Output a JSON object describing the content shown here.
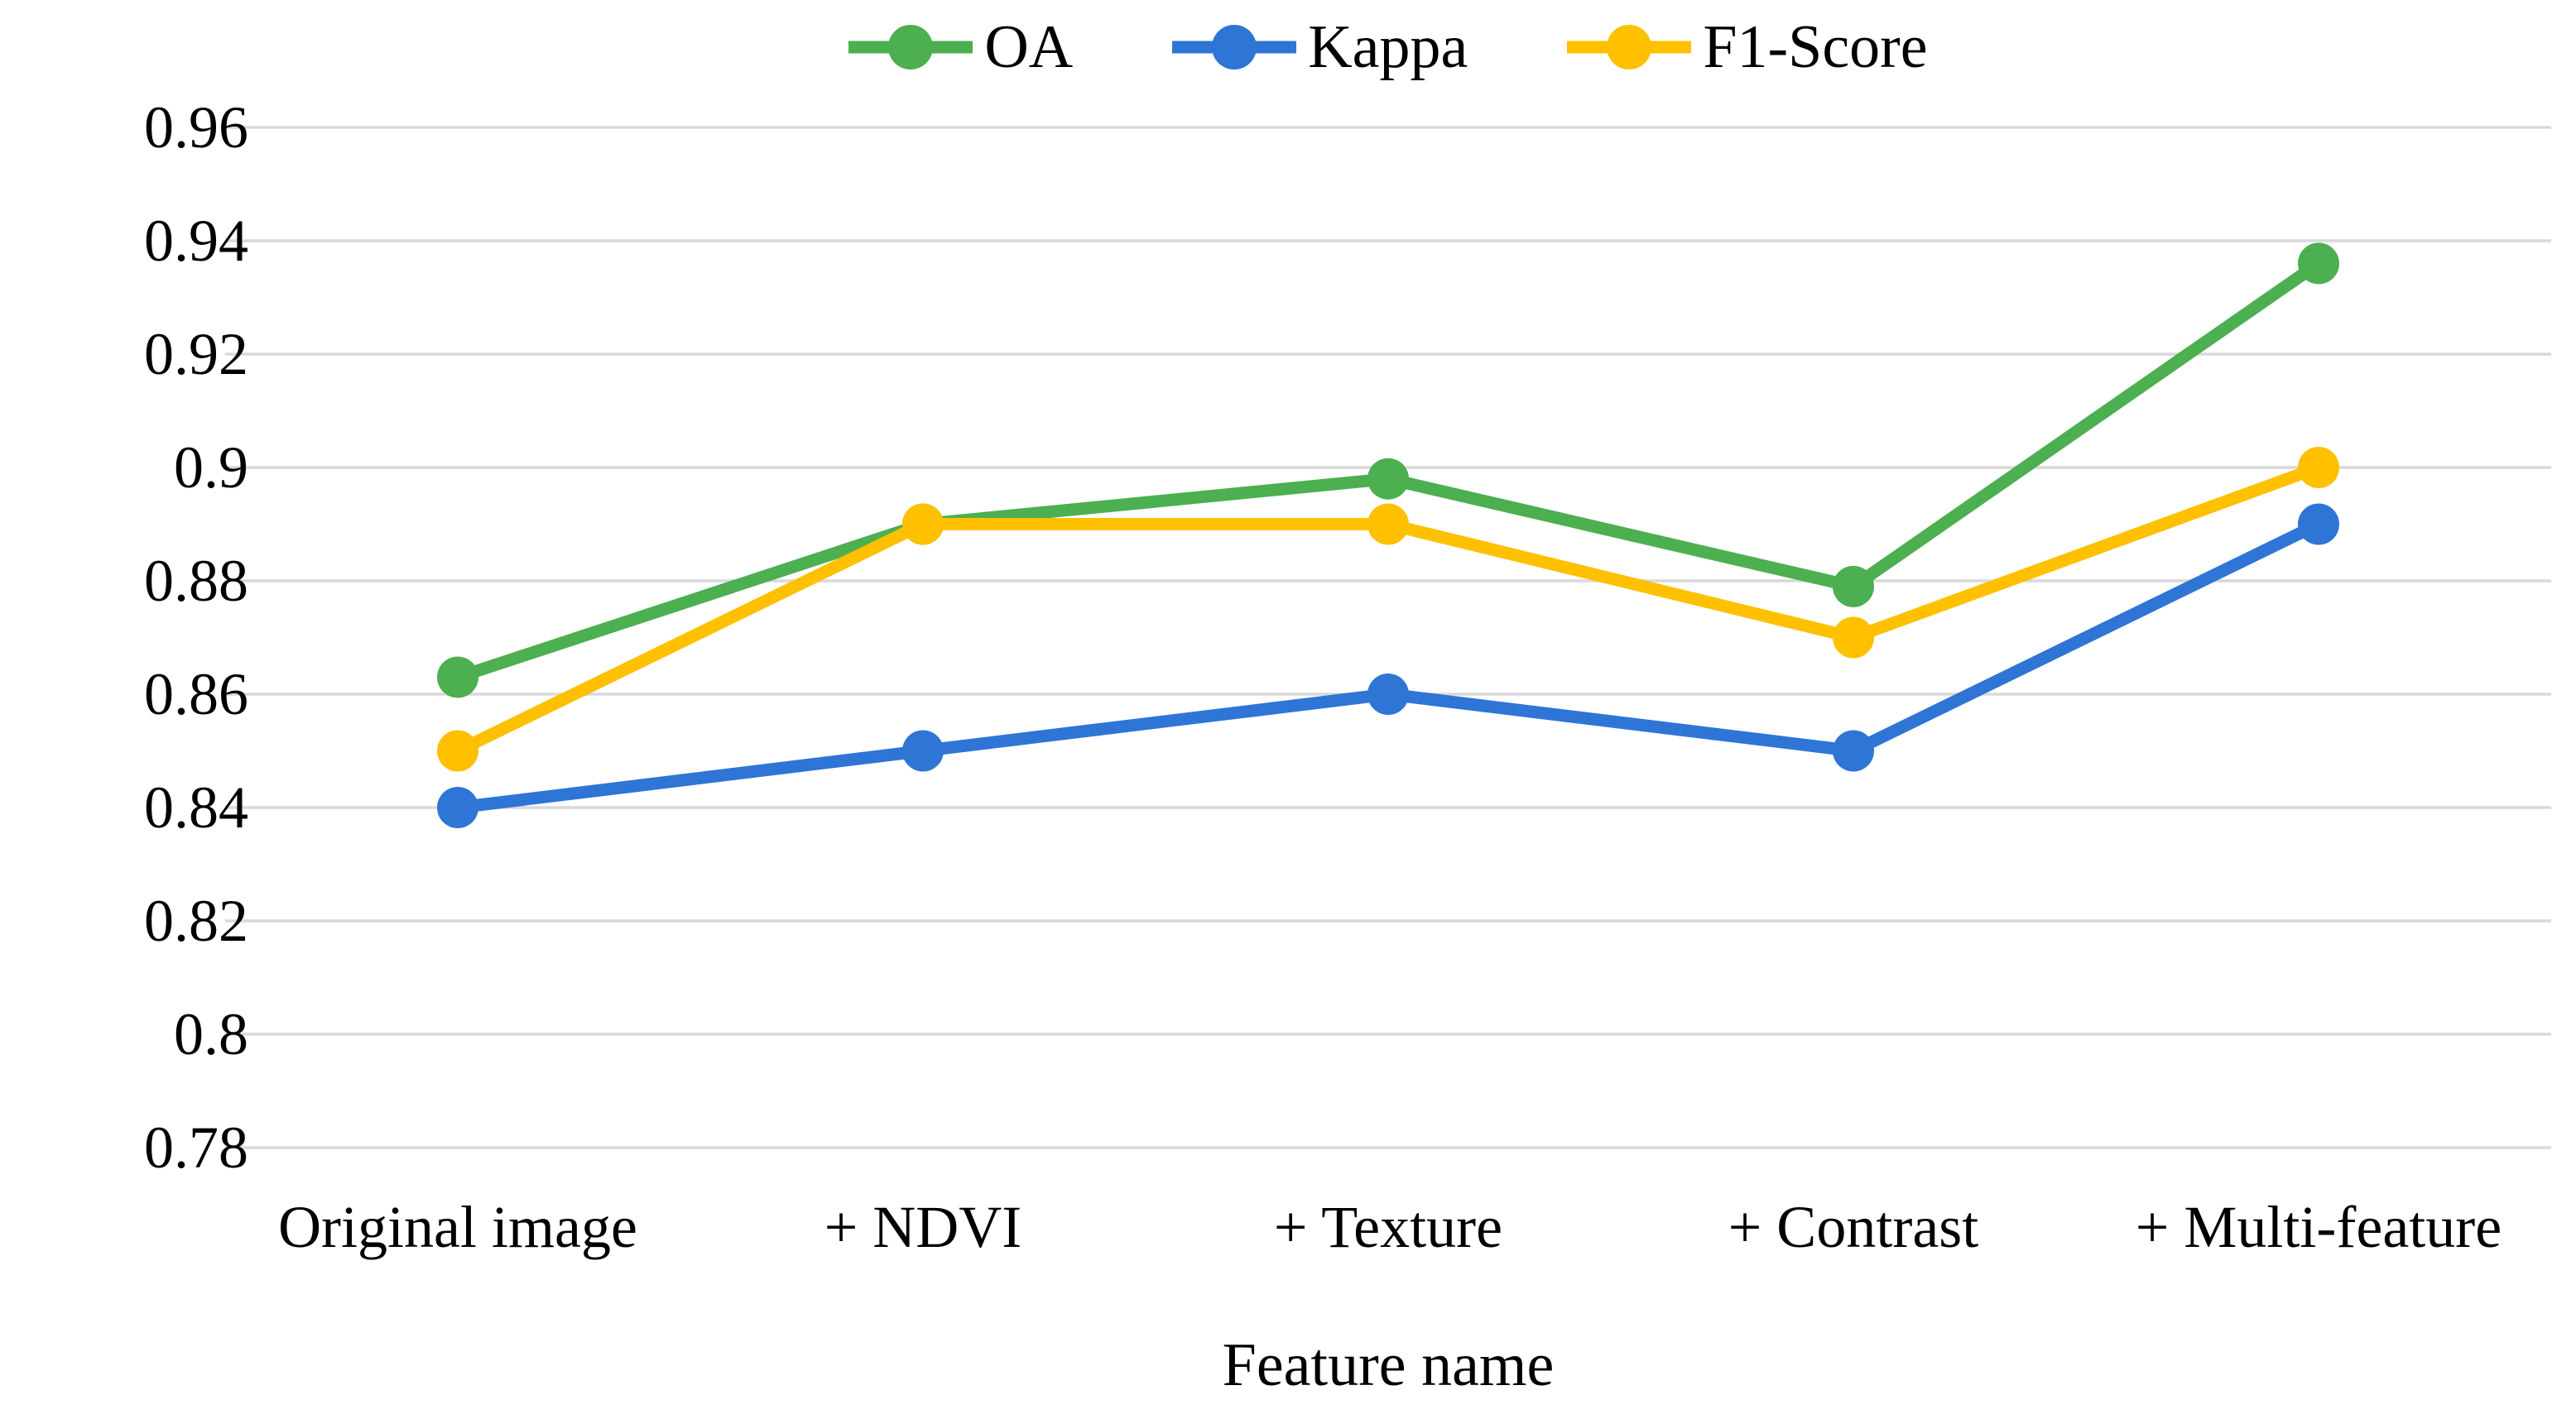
{
  "chart_data": {
    "type": "line",
    "title": "",
    "xlabel": "Feature name",
    "ylabel": "",
    "categories": [
      "Original image",
      "+ NDVI",
      "+ Texture",
      "+ Contrast",
      "+ Multi-feature"
    ],
    "series": [
      {
        "name": "OA",
        "color": "#4CAF50",
        "values": [
          0.863,
          0.89,
          0.898,
          0.879,
          0.936
        ]
      },
      {
        "name": "Kappa",
        "color": "#2E75D6",
        "values": [
          0.84,
          0.85,
          0.86,
          0.85,
          0.89
        ]
      },
      {
        "name": "F1-Score",
        "color": "#FFC000",
        "values": [
          0.85,
          0.89,
          0.89,
          0.87,
          0.9
        ]
      }
    ],
    "ylim": [
      0.78,
      0.96
    ],
    "ytick_step": 0.02,
    "ytick_labels": [
      "0.96",
      "0.94",
      "0.92",
      "0.9",
      "0.88",
      "0.86",
      "0.84",
      "0.82",
      "0.8",
      "0.78"
    ],
    "grid": "horizontal",
    "legend_position": "top-center",
    "marker": "circle"
  },
  "colors": {
    "grid": "#D9D9D9",
    "text": "#000000",
    "background": "#FFFFFF"
  }
}
